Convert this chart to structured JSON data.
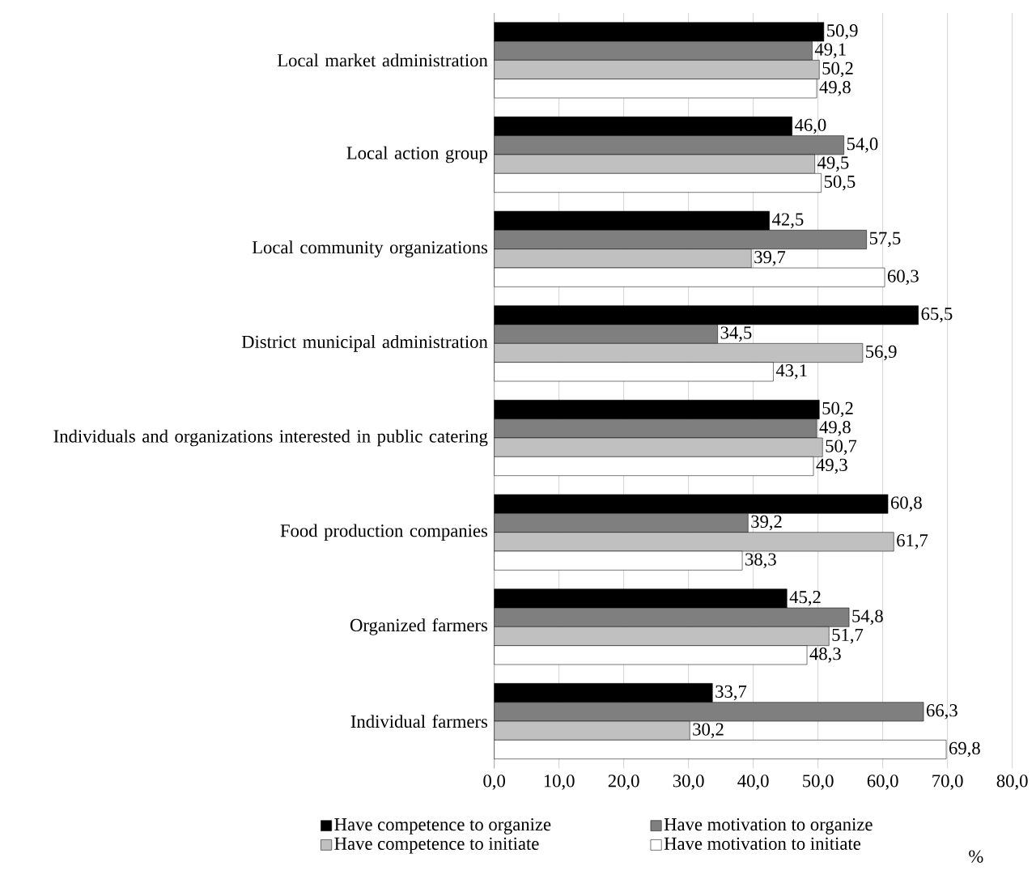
{
  "chart_data": {
    "type": "bar",
    "orientation": "horizontal",
    "categories": [
      "Local market administration",
      "Local action group",
      "Local community organizations",
      "District municipal administration",
      "Individuals and organizations interested in public catering",
      "Food production companies",
      "Organized farmers",
      "Individual farmers"
    ],
    "series": [
      {
        "name": "Have competence to organize",
        "color": "#000000",
        "values": [
          50.9,
          46.0,
          42.5,
          65.5,
          50.2,
          60.8,
          45.2,
          33.7
        ],
        "value_labels": [
          "50,9",
          "46,0",
          "42,5",
          "65,5",
          "50,2",
          "60,8",
          "45,2",
          "33,7"
        ]
      },
      {
        "name": "Have motivation to organize",
        "color": "#7f7f7f",
        "values": [
          49.1,
          54.0,
          57.5,
          34.5,
          49.8,
          39.2,
          54.8,
          66.3
        ],
        "value_labels": [
          "49,1",
          "54,0",
          "57,5",
          "34,5",
          "49,8",
          "39,2",
          "54,8",
          "66,3"
        ]
      },
      {
        "name": "Have competence to initiate",
        "color": "#c0c0c0",
        "values": [
          50.2,
          49.5,
          39.7,
          56.9,
          50.7,
          61.7,
          51.7,
          30.2
        ],
        "value_labels": [
          "50,2",
          "49,5",
          "39,7",
          "56,9",
          "50,7",
          "61,7",
          "51,7",
          "30,2"
        ]
      },
      {
        "name": "Have motivation to initiate",
        "color": "#ffffff",
        "values": [
          49.8,
          50.5,
          60.3,
          43.1,
          49.3,
          38.3,
          48.3,
          69.8
        ],
        "value_labels": [
          "49,8",
          "50,5",
          "60,3",
          "43,1",
          "49,3",
          "38,3",
          "48,3",
          "69,8"
        ]
      }
    ],
    "xlim": [
      0,
      80
    ],
    "xticks": [
      {
        "value": 0,
        "label": "0,0"
      },
      {
        "value": 10,
        "label": "10,0"
      },
      {
        "value": 20,
        "label": "20,0"
      },
      {
        "value": 30,
        "label": "30,0"
      },
      {
        "value": 40,
        "label": "40,0"
      },
      {
        "value": 50,
        "label": "50,0"
      },
      {
        "value": 60,
        "label": "60,0"
      },
      {
        "value": 70,
        "label": "70,0"
      },
      {
        "value": 80,
        "label": "80,0"
      }
    ],
    "xlabel": "%",
    "grid": "x",
    "legend": "bottom"
  }
}
